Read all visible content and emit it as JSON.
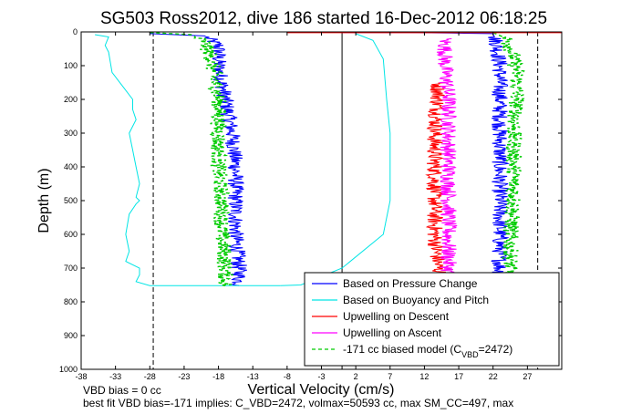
{
  "chart_data": {
    "type": "line",
    "title": "SG503 Ross2012, dive 186 started 16-Dec-2012 06:18:25",
    "xlabel": "Vertical Velocity (cm/s)",
    "ylabel": "Depth (m)",
    "xlim": [
      -38,
      32
    ],
    "ylim": [
      0,
      1000
    ],
    "y_reversed": true,
    "grid": false,
    "x_ticks": [
      -38,
      -33,
      -28,
      -23,
      -18,
      -13,
      -8,
      -3,
      2,
      7,
      12,
      17,
      22,
      27
    ],
    "y_ticks": [
      0,
      100,
      200,
      300,
      400,
      500,
      600,
      700,
      800,
      900,
      1000
    ],
    "legend_position": "bottom-right",
    "colors": {
      "pressure": "#0000ff",
      "buoyancy": "#00e5e5",
      "upwell_descent": "#ff0000",
      "upwell_ascent": "#ff00ff",
      "biased_model": "#00cc00"
    },
    "series": [
      {
        "name": "Based on Pressure Change",
        "key": "pressure",
        "style": "solid",
        "noisy": true,
        "branches": [
          {
            "points": [
              [
                -28,
                5
              ],
              [
                -20,
                12
              ],
              [
                -18,
                40
              ],
              [
                -18,
                100
              ],
              [
                -17,
                200
              ],
              [
                -16,
                300
              ],
              [
                -15.5,
                400
              ],
              [
                -15.5,
                500
              ],
              [
                -15.5,
                600
              ],
              [
                -15,
                700
              ],
              [
                -15,
                752
              ]
            ]
          },
          {
            "points": [
              [
                0,
                2
              ],
              [
                10,
                2
              ],
              [
                22,
                5
              ],
              [
                22.5,
                30
              ],
              [
                23,
                100
              ],
              [
                23,
                200
              ],
              [
                23,
                300
              ],
              [
                23,
                400
              ],
              [
                23,
                500
              ],
              [
                23,
                600
              ],
              [
                23,
                700
              ],
              [
                23,
                750
              ]
            ]
          }
        ]
      },
      {
        "name": "Based on Buoyancy and Pitch",
        "key": "buoyancy",
        "style": "solid",
        "noisy": false,
        "branches": [
          {
            "points": [
              [
                -36,
                8
              ],
              [
                -34,
                15
              ],
              [
                -34.5,
                40
              ],
              [
                -34,
                60
              ],
              [
                -33.5,
                120
              ],
              [
                -32,
                160
              ],
              [
                -30.5,
                200
              ],
              [
                -30.5,
                230
              ],
              [
                -30,
                260
              ],
              [
                -31,
                300
              ],
              [
                -30.5,
                350
              ],
              [
                -30,
                400
              ],
              [
                -29.5,
                450
              ],
              [
                -30,
                490
              ],
              [
                -29.5,
                500
              ],
              [
                -30,
                510
              ],
              [
                -31,
                540
              ],
              [
                -31.5,
                600
              ],
              [
                -31,
                650
              ],
              [
                -31.5,
                680
              ],
              [
                -29.5,
                700
              ],
              [
                -29.5,
                720
              ],
              [
                -30,
                740
              ],
              [
                -28,
                752
              ],
              [
                -15,
                752
              ],
              [
                -9,
                752
              ]
            ]
          },
          {
            "points": [
              [
                -9,
                752
              ],
              [
                -6,
                750
              ],
              [
                0,
                700
              ],
              [
                6,
                600
              ],
              [
                7,
                500
              ],
              [
                7,
                400
              ],
              [
                7,
                300
              ],
              [
                6.5,
                200
              ],
              [
                6,
                80
              ],
              [
                4.5,
                25
              ],
              [
                2,
                5
              ]
            ]
          }
        ]
      },
      {
        "name": "Upwelling on Descent",
        "key": "upwell_descent",
        "style": "solid",
        "noisy": true,
        "branches": [
          {
            "points": [
              [
                14,
                150
              ],
              [
                14,
                200
              ],
              [
                13.5,
                300
              ],
              [
                13.5,
                400
              ],
              [
                13.5,
                500
              ],
              [
                13.5,
                600
              ],
              [
                14,
                700
              ],
              [
                14.5,
                740
              ]
            ]
          }
        ]
      },
      {
        "name": "Upwelling on Ascent",
        "key": "upwell_ascent",
        "style": "solid",
        "noisy": true,
        "branches": [
          {
            "points": [
              [
                15,
                20
              ],
              [
                15,
                50
              ],
              [
                15,
                100
              ],
              [
                15.5,
                200
              ],
              [
                15.5,
                300
              ],
              [
                15.5,
                400
              ],
              [
                15.5,
                500
              ],
              [
                15.5,
                600
              ],
              [
                15.5,
                700
              ],
              [
                15.5,
                750
              ]
            ]
          }
        ]
      },
      {
        "name": "-171 cc biased model (C",
        "name_subscript": "VBD",
        "name_suffix": "=2472)",
        "key": "biased_model",
        "style": "dashed",
        "noisy": true,
        "branches": [
          {
            "points": [
              [
                -28,
                2
              ],
              [
                -22,
                8
              ],
              [
                -20,
                30
              ],
              [
                -19,
                80
              ],
              [
                -18.5,
                150
              ],
              [
                -18,
                200
              ],
              [
                -18,
                300
              ],
              [
                -18,
                400
              ],
              [
                -17.5,
                500
              ],
              [
                -17.5,
                600
              ],
              [
                -17,
                700
              ],
              [
                -17,
                752
              ]
            ]
          },
          {
            "points": [
              [
                22,
                2
              ],
              [
                24,
                20
              ],
              [
                24.5,
                40
              ],
              [
                25,
                80
              ],
              [
                25.5,
                120
              ],
              [
                25.5,
                200
              ],
              [
                25,
                300
              ],
              [
                25,
                400
              ],
              [
                25,
                500
              ],
              [
                24.5,
                600
              ],
              [
                24.5,
                700
              ],
              [
                24.5,
                750
              ]
            ]
          }
        ]
      }
    ],
    "reference_lines": [
      {
        "x": -27.5,
        "style": "dashed"
      },
      {
        "x": 0,
        "style": "solid"
      },
      {
        "x": 28.5,
        "style": "dashed"
      }
    ],
    "surface_line": {
      "color": "#ff0000",
      "x_from": -8,
      "x_to": 32,
      "y": 2
    }
  },
  "footer": {
    "line1": "VBD bias = 0 cc",
    "line2": "best fit VBD bias=-171 implies: C_VBD=2472, volmax=50593 cc, max SM_CC=497, max"
  }
}
